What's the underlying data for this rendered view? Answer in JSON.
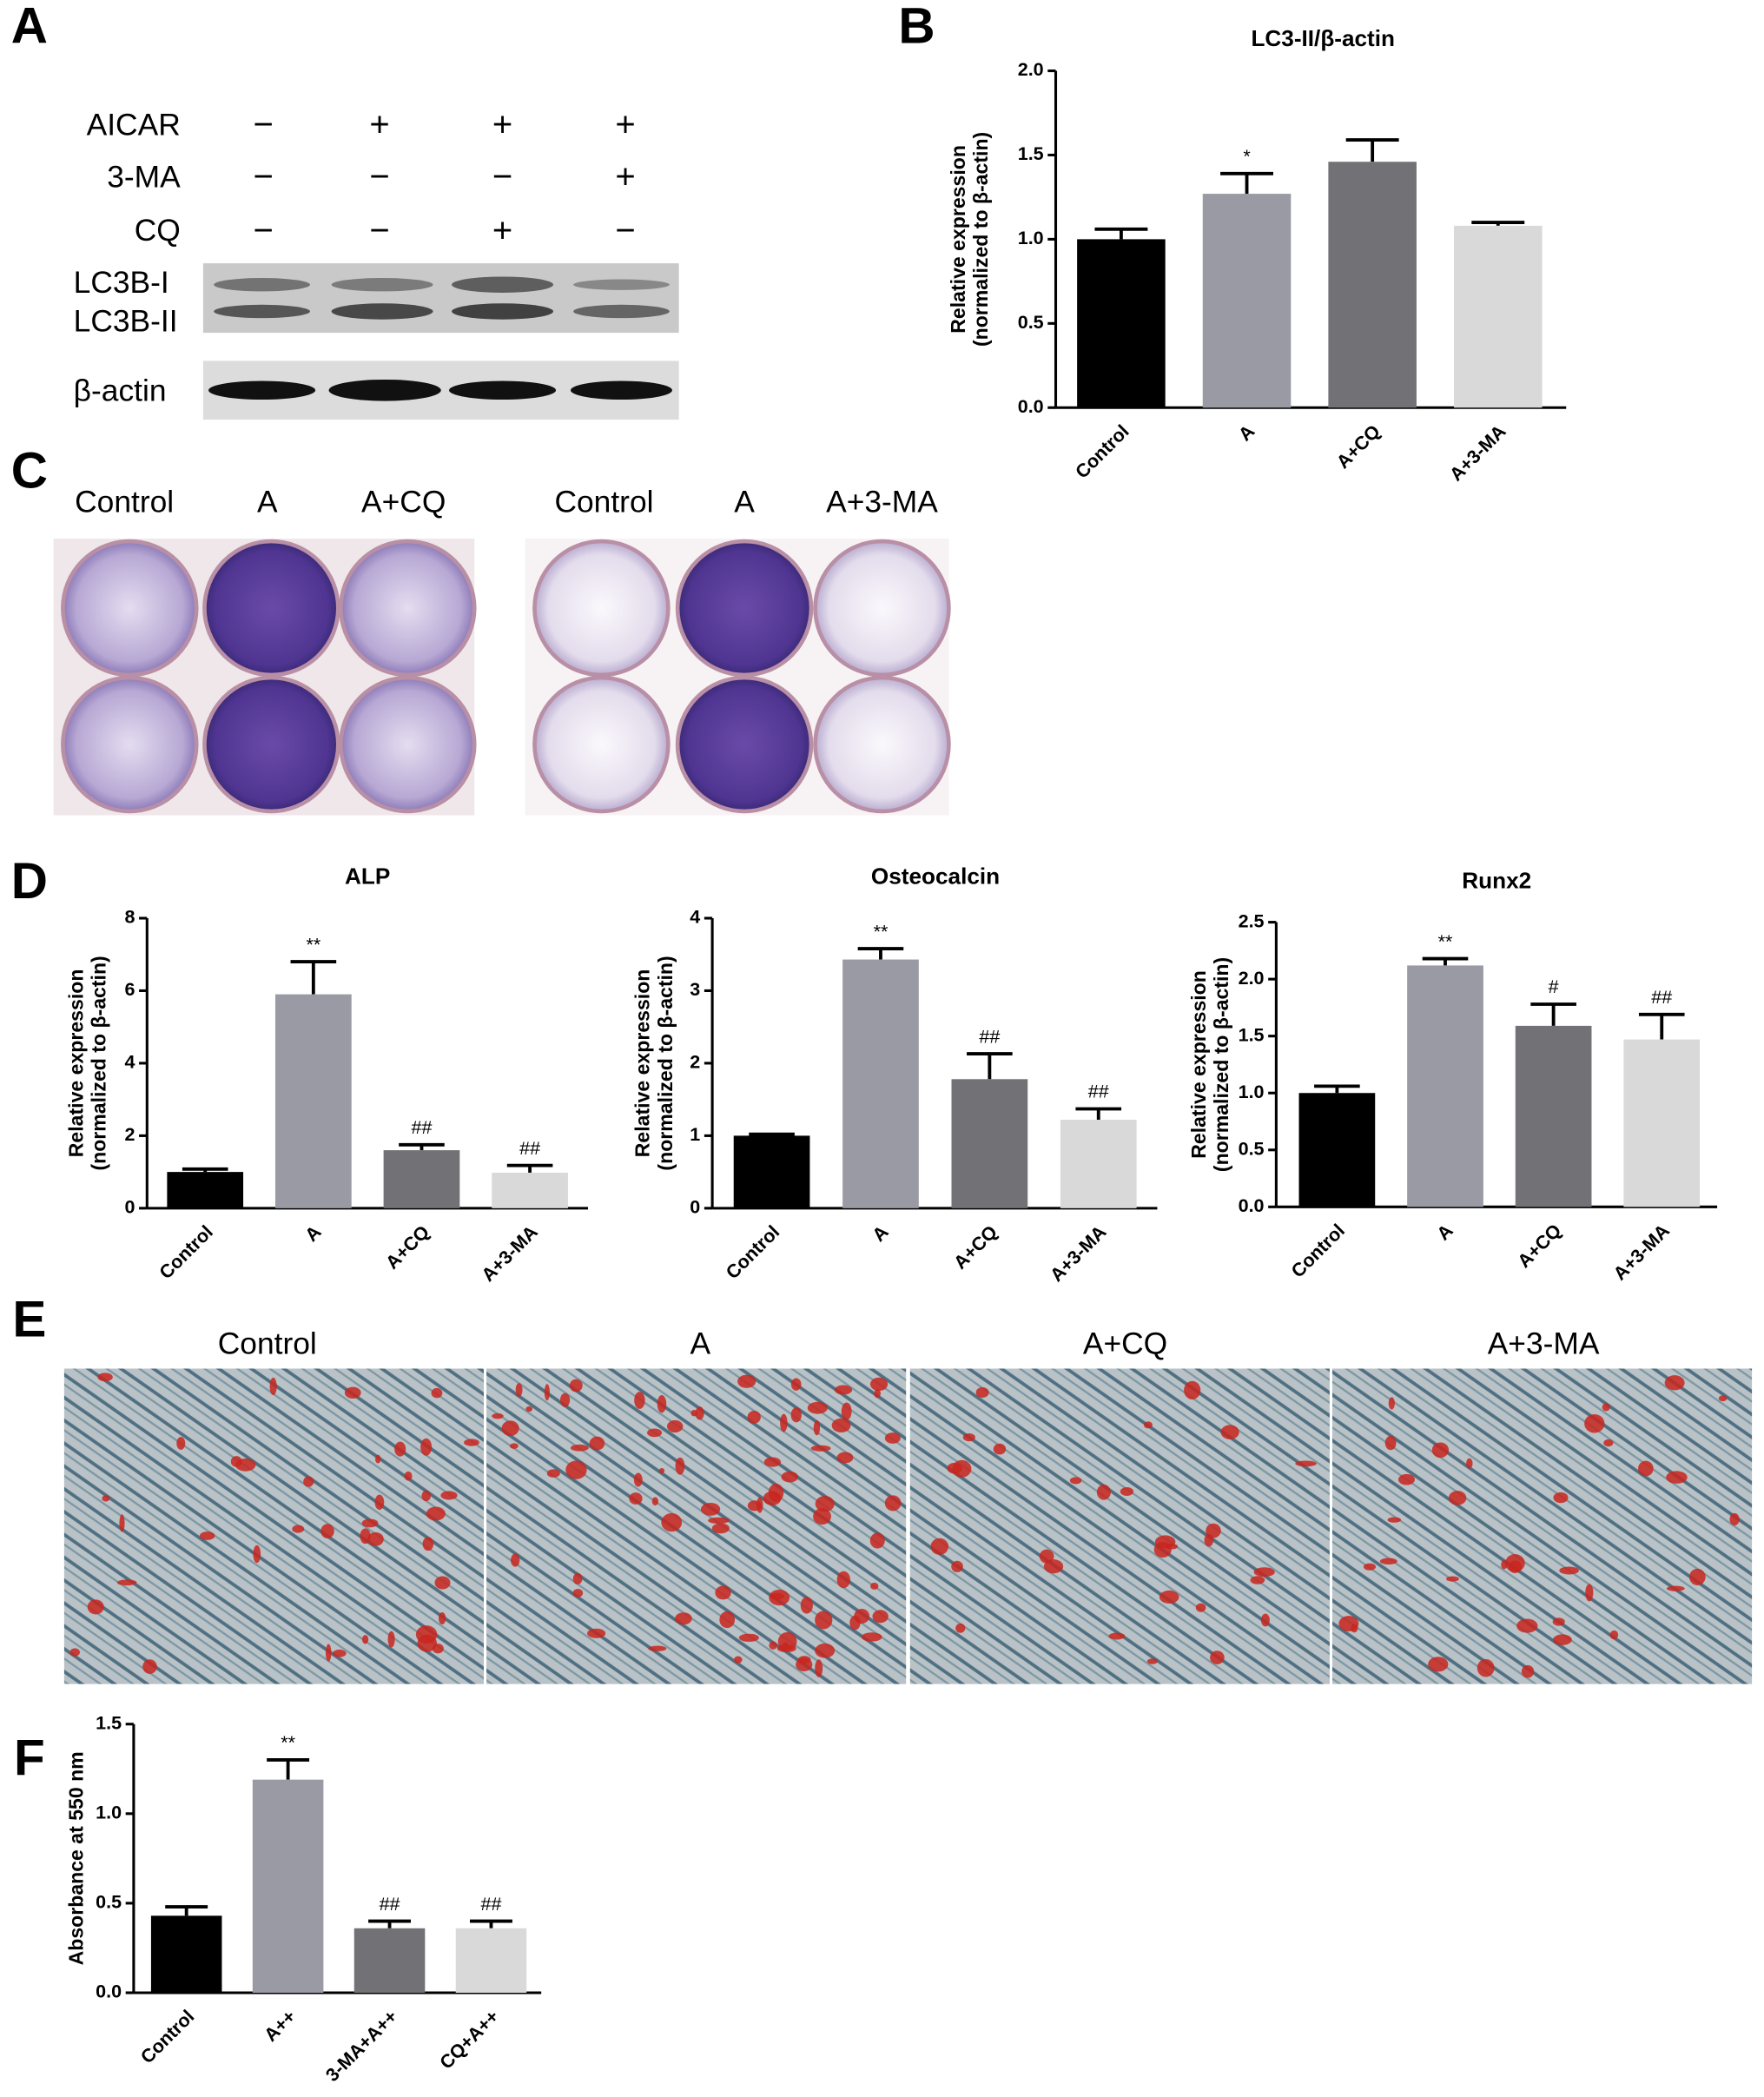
{
  "panel_labels": [
    "A",
    "B",
    "C",
    "D",
    "E",
    "F"
  ],
  "panel_a": {
    "rows": [
      {
        "label": "AICAR",
        "signs": [
          "−",
          "+",
          "+",
          "+"
        ]
      },
      {
        "label": "3-MA",
        "signs": [
          "−",
          "−",
          "−",
          "+"
        ]
      },
      {
        "label": "CQ",
        "signs": [
          "−",
          "−",
          "+",
          "−"
        ]
      }
    ],
    "bands": [
      "LC3B-I",
      "LC3B-II",
      "β-actin"
    ]
  },
  "panel_c": {
    "labels": [
      "Control",
      "A",
      "A+CQ",
      "Control",
      "A",
      "A+3-MA"
    ]
  },
  "panel_e": {
    "labels": [
      "Control",
      "A",
      "A+CQ",
      "A+3-MA"
    ]
  },
  "chart_data": [
    {
      "type": "bar",
      "title": "LC3-II/β-actin",
      "ylabel": [
        "Relative expression",
        "(normalized to β-actin)"
      ],
      "categories": [
        "Control",
        "A",
        "A+CQ",
        "A+3-MA"
      ],
      "values": [
        1.0,
        1.27,
        1.46,
        1.08
      ],
      "errors": [
        0.06,
        0.12,
        0.13,
        0.02
      ],
      "annotations": [
        null,
        "*",
        null,
        null
      ],
      "colors": [
        "#000000",
        "#9a9aa4",
        "#727276",
        "#d9d9d9"
      ],
      "ylim": [
        0,
        2
      ],
      "yticks": [
        {
          "value": 0,
          "label": "0.0"
        },
        0.5,
        {
          "value": 1,
          "label": "1.0"
        },
        1.5,
        {
          "value": 2,
          "label": "2.0"
        }
      ]
    },
    {
      "type": "bar",
      "title": "ALP",
      "ylabel": [
        "Relative expression",
        "(normalized to β-actin)"
      ],
      "categories": [
        "Control",
        "A",
        "A+CQ",
        "A+3-MA"
      ],
      "values": [
        1.0,
        5.9,
        1.6,
        0.98
      ],
      "errors": [
        0.08,
        0.9,
        0.15,
        0.2
      ],
      "annotations": [
        null,
        "**",
        "##",
        "##"
      ],
      "colors": [
        "#000000",
        "#9a9aa4",
        "#727276",
        "#d9d9d9"
      ],
      "ylim": [
        0,
        8
      ],
      "yticks": [
        0,
        2,
        4,
        6,
        8
      ]
    },
    {
      "type": "bar",
      "title": "Osteocalcin",
      "ylabel": [
        "Relative expression",
        "(normalized to β-actin)"
      ],
      "categories": [
        "Control",
        "A",
        "A+CQ",
        "A+3-MA"
      ],
      "values": [
        1.0,
        3.43,
        1.78,
        1.22
      ],
      "errors": [
        0.02,
        0.15,
        0.35,
        0.15
      ],
      "annotations": [
        null,
        "**",
        "##",
        "##"
      ],
      "colors": [
        "#000000",
        "#9a9aa4",
        "#727276",
        "#d9d9d9"
      ],
      "ylim": [
        0,
        4
      ],
      "yticks": [
        0,
        1,
        2,
        3,
        4
      ]
    },
    {
      "type": "bar",
      "title": "Runx2",
      "ylabel": [
        "Relative expression",
        "(normalized to β-actin)"
      ],
      "categories": [
        "Control",
        "A",
        "A+CQ",
        "A+3-MA"
      ],
      "values": [
        1.0,
        2.12,
        1.59,
        1.47
      ],
      "errors": [
        0.06,
        0.06,
        0.19,
        0.22
      ],
      "annotations": [
        null,
        "**",
        "#",
        "##"
      ],
      "colors": [
        "#000000",
        "#9a9aa4",
        "#727276",
        "#d9d9d9"
      ],
      "ylim": [
        0,
        2.5
      ],
      "yticks": [
        {
          "value": 0,
          "label": "0.0"
        },
        0.5,
        {
          "value": 1,
          "label": "1.0"
        },
        1.5,
        {
          "value": 2,
          "label": "2.0"
        },
        2.5
      ]
    },
    {
      "type": "bar",
      "ylabel": "Absorbance at 550 nm",
      "categories": [
        "Control",
        "A++",
        "3-MA+A++",
        "CQ+A++"
      ],
      "values": [
        0.43,
        1.19,
        0.36,
        0.36
      ],
      "errors": [
        0.05,
        0.11,
        0.04,
        0.04
      ],
      "annotations": [
        null,
        "**",
        "##",
        "##"
      ],
      "colors": [
        "#000000",
        "#9a9aa4",
        "#727276",
        "#d9d9d9"
      ],
      "ylim": [
        0,
        1.5
      ],
      "yticks": [
        {
          "value": 0,
          "label": "0.0"
        },
        0.5,
        {
          "value": 1,
          "label": "1.0"
        },
        1.5
      ]
    }
  ]
}
